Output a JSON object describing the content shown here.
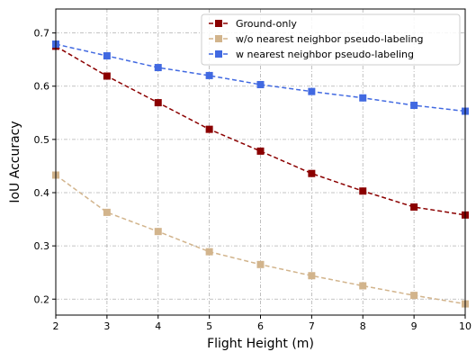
{
  "chart_data": {
    "type": "line",
    "title": "",
    "xlabel": "Flight Height (m)",
    "ylabel": "IoU Accuracy",
    "x": [
      2,
      3,
      4,
      5,
      6,
      7,
      8,
      9,
      10
    ],
    "xlim": [
      2,
      10
    ],
    "ylim": [
      0.17,
      0.745
    ],
    "xticks": [
      2,
      3,
      4,
      5,
      6,
      7,
      8,
      9,
      10
    ],
    "yticks": [
      0.2,
      0.3,
      0.4,
      0.5,
      0.6,
      0.7
    ],
    "ytick_labels": [
      "0.2",
      "0.3",
      "0.4",
      "0.5",
      "0.6",
      "0.7"
    ],
    "grid": true,
    "legend_position": "top-right",
    "series": [
      {
        "name": "Ground-only",
        "color": "#8b0000",
        "values": [
          0.675,
          0.619,
          0.569,
          0.519,
          0.478,
          0.436,
          0.403,
          0.373,
          0.358
        ]
      },
      {
        "name": "w/o nearest neighbor pseudo-labeling",
        "color": "#d2b48c",
        "values": [
          0.433,
          0.363,
          0.327,
          0.289,
          0.265,
          0.244,
          0.225,
          0.207,
          0.191
        ]
      },
      {
        "name": "w nearest neighbor pseudo-labeling",
        "color": "#4169e1",
        "values": [
          0.679,
          0.657,
          0.635,
          0.62,
          0.603,
          0.59,
          0.578,
          0.564,
          0.553
        ]
      }
    ]
  }
}
